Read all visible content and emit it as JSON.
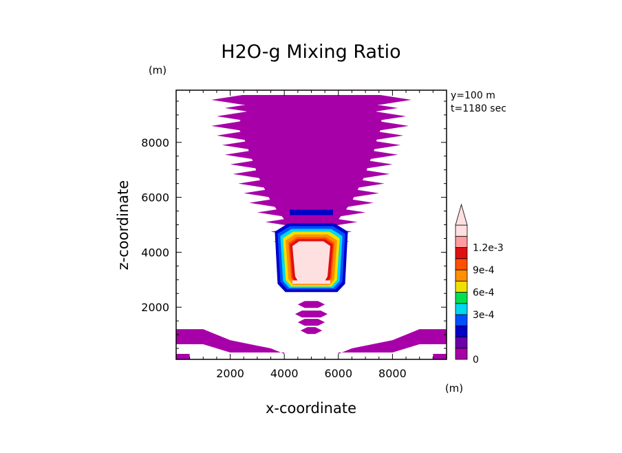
{
  "chart_data": {
    "type": "heatmap",
    "title": "H2O-g Mixing Ratio",
    "xlabel": "x-coordinate",
    "ylabel": "z-coordinate",
    "x_unit": "(m)",
    "y_unit": "(m)",
    "annotations": [
      "y=100 m",
      "t=1180 sec"
    ],
    "xlim": [
      0,
      10000
    ],
    "ylim": [
      100,
      9900
    ],
    "x_ticks": [
      2000,
      4000,
      6000,
      8000
    ],
    "x_tick_labels": [
      "2000",
      "4000",
      "6000",
      "8000"
    ],
    "y_ticks": [
      2000,
      4000,
      6000,
      8000
    ],
    "y_tick_labels": [
      "2000",
      "4000",
      "6000",
      "8000"
    ],
    "colorbar": {
      "levels": [
        0,
        0.00015,
        0.0003,
        0.00045,
        0.0006,
        0.00075,
        0.0009,
        0.00105,
        0.0012
      ],
      "tick_labels": [
        "0",
        "3e-4",
        "6e-4",
        "9e-4",
        "1.2e-3"
      ],
      "colors": [
        "#a800a8",
        "#6a00a8",
        "#0000c8",
        "#0050ff",
        "#00d8f0",
        "#00e050",
        "#f0e000",
        "#ff9000",
        "#ff5000",
        "#e01010",
        "#ff9ca0",
        "#ffe0e0"
      ],
      "extend": "max"
    },
    "plume": {
      "stripe_rows": [
        {
          "z": 9550,
          "x0": 1300,
          "x1": 8700
        },
        {
          "z": 9250,
          "x0": 1800,
          "x1": 8200
        },
        {
          "z": 8950,
          "x0": 1500,
          "x1": 8500
        },
        {
          "z": 8600,
          "x0": 1300,
          "x1": 8600
        },
        {
          "z": 8250,
          "x0": 1500,
          "x1": 8400
        },
        {
          "z": 7900,
          "x0": 1700,
          "x1": 8300
        },
        {
          "z": 7550,
          "x0": 1800,
          "x1": 8200
        },
        {
          "z": 7200,
          "x0": 2000,
          "x1": 8000
        },
        {
          "z": 6850,
          "x0": 2100,
          "x1": 7900
        },
        {
          "z": 6500,
          "x0": 2300,
          "x1": 7700
        },
        {
          "z": 6150,
          "x0": 2500,
          "x1": 7500
        },
        {
          "z": 5800,
          "x0": 2700,
          "x1": 7300
        },
        {
          "z": 5450,
          "x0": 3000,
          "x1": 7000
        },
        {
          "z": 5100,
          "x0": 3300,
          "x1": 6700
        },
        {
          "z": 4750,
          "x0": 3500,
          "x1": 6500
        },
        {
          "z": 4400,
          "x0": 3600,
          "x1": 6400
        },
        {
          "z": 4000,
          "x0": 3700,
          "x1": 6300
        },
        {
          "z": 3600,
          "x0": 3800,
          "x1": 6200
        },
        {
          "z": 3200,
          "x0": 3900,
          "x1": 6100
        },
        {
          "z": 2800,
          "x0": 3900,
          "x1": 6000
        }
      ],
      "lower_blobs": [
        {
          "z": 2100,
          "x0": 4500,
          "x1": 5500
        },
        {
          "z": 1750,
          "x0": 4400,
          "x1": 5600
        },
        {
          "z": 1450,
          "x0": 4500,
          "x1": 5500
        },
        {
          "z": 1150,
          "x0": 4600,
          "x1": 5400
        }
      ],
      "core": [
        {
          "level": 2,
          "z_top": 5050,
          "z_bot": 2550,
          "x0": 3650,
          "x1": 6350
        },
        {
          "level": 3,
          "z_top": 4950,
          "z_bot": 2650,
          "x0": 3750,
          "x1": 6250
        },
        {
          "level": 4,
          "z_top": 4850,
          "z_bot": 2700,
          "x0": 3850,
          "x1": 6150
        },
        {
          "level": 6,
          "z_top": 4750,
          "z_bot": 2750,
          "x0": 3950,
          "x1": 6050
        },
        {
          "level": 7,
          "z_top": 4650,
          "z_bot": 2800,
          "x0": 4050,
          "x1": 5950
        },
        {
          "level": 8,
          "z_top": 4550,
          "z_bot": 2850,
          "x0": 4150,
          "x1": 5850
        },
        {
          "level": 9,
          "z_top": 4480,
          "z_bot": 2880,
          "x0": 4200,
          "x1": 5800
        },
        {
          "level": 11,
          "z_top": 4400,
          "z_bot": 2950,
          "x0": 4300,
          "x1": 5700
        }
      ],
      "dark_band": {
        "z": 5450,
        "x0": 4200,
        "x1": 5800
      }
    },
    "ground_layer": {
      "left": [
        [
          0,
          1200
        ],
        [
          1000,
          1200
        ],
        [
          2000,
          800
        ],
        [
          3500,
          500
        ],
        [
          4000,
          300
        ]
      ],
      "right": [
        [
          10000,
          1200
        ],
        [
          9000,
          1200
        ],
        [
          8000,
          800
        ],
        [
          6500,
          500
        ],
        [
          6000,
          300
        ]
      ]
    }
  }
}
